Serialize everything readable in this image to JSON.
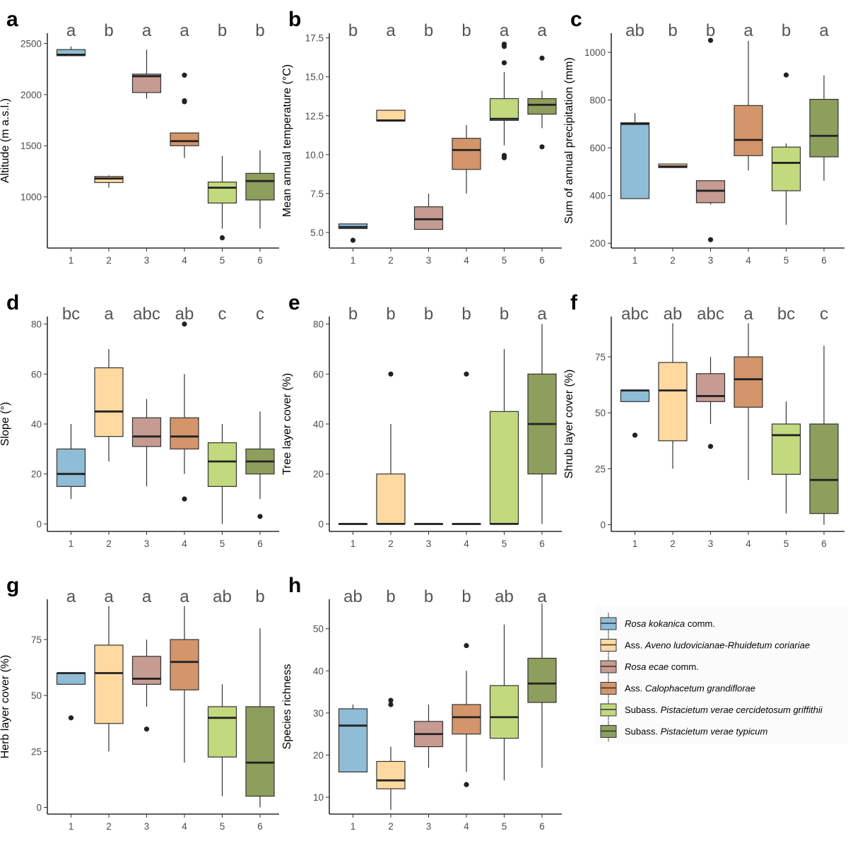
{
  "groups": [
    "1",
    "2",
    "3",
    "4",
    "5",
    "6"
  ],
  "colors": [
    "#8fbcd6",
    "#ffd9a0",
    "#c69b92",
    "#d4956a",
    "#c2d97e",
    "#8e9e5c"
  ],
  "legend": [
    {
      "italic": "Rosa kokanica",
      "rest": " comm."
    },
    {
      "plain": "Ass. ",
      "italic": "Aveno ludovicianae-Rhuidetum coriariae"
    },
    {
      "italic": "Rosa ecae",
      "rest": " comm."
    },
    {
      "plain": "Ass. ",
      "italic": "Calophacetum grandiflorae"
    },
    {
      "plain": "Subass. ",
      "italic": "Pistacietum verae cercidetosum griffithii"
    },
    {
      "plain": "Subass. ",
      "italic": "Pistacietum verae typicum"
    }
  ],
  "chart_data": [
    {
      "type": "box",
      "letter": "a",
      "ylabel": "Altitude (m a.s.l.)",
      "ylim": [
        500,
        2600
      ],
      "yticks": [
        1000,
        1500,
        2000,
        2500
      ],
      "sig": [
        "a",
        "b",
        "a",
        "a",
        "b",
        "b"
      ],
      "boxes": [
        {
          "q1": 2380,
          "med": 2390,
          "q3": 2440,
          "lo": 2375,
          "hi": 2470,
          "out": []
        },
        {
          "q1": 1140,
          "med": 1180,
          "q3": 1200,
          "lo": 1090,
          "hi": 1210,
          "out": []
        },
        {
          "q1": 2020,
          "med": 2180,
          "q3": 2200,
          "lo": 1960,
          "hi": 2440,
          "out": []
        },
        {
          "q1": 1500,
          "med": 1545,
          "q3": 1625,
          "lo": 1380,
          "hi": 1625,
          "out": [
            1930,
            1940,
            2190
          ]
        },
        {
          "q1": 940,
          "med": 1090,
          "q3": 1145,
          "lo": 690,
          "hi": 1400,
          "out": [
            600
          ]
        },
        {
          "q1": 970,
          "med": 1155,
          "q3": 1230,
          "lo": 690,
          "hi": 1455,
          "out": []
        }
      ]
    },
    {
      "type": "box",
      "letter": "b",
      "ylabel": "Mean annual temperature (°C)",
      "ylim": [
        4,
        17.8
      ],
      "yticks": [
        5.0,
        7.5,
        10.0,
        12.5,
        15.0,
        17.5
      ],
      "ytickfmt": 1,
      "sig": [
        "b",
        "a",
        "b",
        "b",
        "a",
        "a"
      ],
      "boxes": [
        {
          "q1": 5.25,
          "med": 5.35,
          "q3": 5.55,
          "lo": 5.25,
          "hi": 5.55,
          "out": [
            4.5
          ]
        },
        {
          "q1": 12.15,
          "med": 12.2,
          "q3": 12.85,
          "lo": 12.15,
          "hi": 12.85,
          "out": []
        },
        {
          "q1": 5.2,
          "med": 5.85,
          "q3": 6.65,
          "lo": 5.2,
          "hi": 7.5,
          "out": []
        },
        {
          "q1": 9.05,
          "med": 10.3,
          "q3": 11.05,
          "lo": 7.5,
          "hi": 11.9,
          "out": []
        },
        {
          "q1": 12.2,
          "med": 12.3,
          "q3": 13.6,
          "lo": 10.6,
          "hi": 15.3,
          "out": [
            9.8,
            9.95,
            15.9,
            16.95,
            17.1
          ]
        },
        {
          "q1": 12.6,
          "med": 13.2,
          "q3": 13.6,
          "lo": 11.7,
          "hi": 14.1,
          "out": [
            10.5,
            16.2
          ]
        }
      ]
    },
    {
      "type": "box",
      "letter": "c",
      "ylabel": "Sum of annual precipitation (mm)",
      "ylim": [
        180,
        1080
      ],
      "yticks": [
        200,
        400,
        600,
        800,
        1000
      ],
      "sig": [
        "ab",
        "b",
        "b",
        "a",
        "b",
        "a"
      ],
      "boxes": [
        {
          "q1": 387,
          "med": 700,
          "q3": 705,
          "lo": 387,
          "hi": 745,
          "out": []
        },
        {
          "q1": 517,
          "med": 522,
          "q3": 532,
          "lo": 517,
          "hi": 532,
          "out": []
        },
        {
          "q1": 370,
          "med": 420,
          "q3": 462,
          "lo": 362,
          "hi": 462,
          "out": [
            215,
            1050
          ]
        },
        {
          "q1": 567,
          "med": 633,
          "q3": 777,
          "lo": 505,
          "hi": 1048,
          "out": []
        },
        {
          "q1": 420,
          "med": 537,
          "q3": 603,
          "lo": 277,
          "hi": 618,
          "out": [
            905
          ]
        },
        {
          "q1": 562,
          "med": 650,
          "q3": 803,
          "lo": 462,
          "hi": 903,
          "out": []
        }
      ]
    },
    {
      "type": "box",
      "letter": "d",
      "ylabel": "Slope (°)",
      "ylim": [
        -3,
        83
      ],
      "yticks": [
        0,
        20,
        40,
        60,
        80
      ],
      "sig": [
        "bc",
        "a",
        "abc",
        "ab",
        "c",
        "c"
      ],
      "boxes": [
        {
          "q1": 15,
          "med": 20,
          "q3": 30,
          "lo": 10,
          "hi": 40,
          "out": []
        },
        {
          "q1": 35,
          "med": 45,
          "q3": 62.5,
          "lo": 25,
          "hi": 70,
          "out": []
        },
        {
          "q1": 31,
          "med": 35,
          "q3": 42.5,
          "lo": 15,
          "hi": 50,
          "out": []
        },
        {
          "q1": 30,
          "med": 35,
          "q3": 42.5,
          "lo": 20,
          "hi": 60,
          "out": [
            10,
            80
          ]
        },
        {
          "q1": 15,
          "med": 25,
          "q3": 32.5,
          "lo": 0,
          "hi": 40,
          "out": []
        },
        {
          "q1": 20,
          "med": 25,
          "q3": 30,
          "lo": 10,
          "hi": 45,
          "out": [
            3
          ]
        }
      ]
    },
    {
      "type": "box",
      "letter": "e",
      "ylabel": "Tree layer cover (%)",
      "ylim": [
        -3,
        83
      ],
      "yticks": [
        0,
        20,
        40,
        60,
        80
      ],
      "sig": [
        "b",
        "b",
        "b",
        "b",
        "b",
        "a"
      ],
      "boxes": [
        {
          "q1": 0,
          "med": 0,
          "q3": 0,
          "lo": 0,
          "hi": 0,
          "out": []
        },
        {
          "q1": 0,
          "med": 0,
          "q3": 20,
          "lo": 0,
          "hi": 40,
          "out": [
            60
          ]
        },
        {
          "q1": 0,
          "med": 0,
          "q3": 0,
          "lo": 0,
          "hi": 0,
          "out": []
        },
        {
          "q1": 0,
          "med": 0,
          "q3": 0,
          "lo": 0,
          "hi": 0,
          "out": [
            60
          ]
        },
        {
          "q1": 0,
          "med": 0,
          "q3": 45,
          "lo": 0,
          "hi": 70,
          "out": []
        },
        {
          "q1": 20,
          "med": 40,
          "q3": 60,
          "lo": 0,
          "hi": 80,
          "out": []
        }
      ]
    },
    {
      "type": "box",
      "letter": "f",
      "ylabel": "Shrub layer cover (%)",
      "ylim": [
        -3,
        93
      ],
      "yticks": [
        0,
        25,
        50,
        75
      ],
      "sig": [
        "abc",
        "ab",
        "abc",
        "a",
        "bc",
        "c"
      ],
      "boxes": [
        {
          "q1": 55,
          "med": 60,
          "q3": 60,
          "lo": 55,
          "hi": 60,
          "out": [
            40
          ]
        },
        {
          "q1": 37.5,
          "med": 60,
          "q3": 72.5,
          "lo": 25,
          "hi": 90,
          "out": []
        },
        {
          "q1": 55,
          "med": 57.5,
          "q3": 67.5,
          "lo": 45,
          "hi": 75,
          "out": [
            35
          ]
        },
        {
          "q1": 52.5,
          "med": 65,
          "q3": 75,
          "lo": 20,
          "hi": 90,
          "out": []
        },
        {
          "q1": 22.5,
          "med": 40,
          "q3": 45,
          "lo": 5,
          "hi": 55,
          "out": []
        },
        {
          "q1": 5,
          "med": 20,
          "q3": 45,
          "lo": 0,
          "hi": 80,
          "out": []
        }
      ]
    },
    {
      "type": "box",
      "letter": "g",
      "ylabel": "Herb layer cover (%)",
      "ylim": [
        -3,
        93
      ],
      "yticks": [
        0,
        25,
        50,
        75
      ],
      "sig": [
        "a",
        "a",
        "a",
        "a",
        "ab",
        "b"
      ],
      "boxes": [
        {
          "q1": 55,
          "med": 60,
          "q3": 60,
          "lo": 55,
          "hi": 60,
          "out": [
            40
          ]
        },
        {
          "q1": 37.5,
          "med": 60,
          "q3": 72.5,
          "lo": 25,
          "hi": 90,
          "out": []
        },
        {
          "q1": 55,
          "med": 57.5,
          "q3": 67.5,
          "lo": 45,
          "hi": 75,
          "out": [
            35
          ]
        },
        {
          "q1": 52.5,
          "med": 65,
          "q3": 75,
          "lo": 20,
          "hi": 90,
          "out": []
        },
        {
          "q1": 22.5,
          "med": 40,
          "q3": 45,
          "lo": 5,
          "hi": 55,
          "out": []
        },
        {
          "q1": 5,
          "med": 20,
          "q3": 45,
          "lo": 0,
          "hi": 80,
          "out": []
        }
      ]
    },
    {
      "type": "box",
      "letter": "h",
      "ylabel": "Species richness",
      "ylim": [
        6,
        57
      ],
      "yticks": [
        10,
        20,
        30,
        40,
        50
      ],
      "sig": [
        "ab",
        "b",
        "b",
        "b",
        "ab",
        "a"
      ],
      "boxes": [
        {
          "q1": 16,
          "med": 27,
          "q3": 31,
          "lo": 16,
          "hi": 32,
          "out": []
        },
        {
          "q1": 12,
          "med": 14,
          "q3": 18.5,
          "lo": 7,
          "hi": 22,
          "out": [
            32,
            33
          ]
        },
        {
          "q1": 22,
          "med": 25,
          "q3": 28,
          "lo": 17,
          "hi": 32,
          "out": []
        },
        {
          "q1": 25,
          "med": 29,
          "q3": 32,
          "lo": 16,
          "hi": 40,
          "out": [
            13,
            46
          ]
        },
        {
          "q1": 24,
          "med": 29,
          "q3": 36.5,
          "lo": 14,
          "hi": 51,
          "out": []
        },
        {
          "q1": 32.5,
          "med": 37,
          "q3": 43,
          "lo": 17,
          "hi": 56,
          "out": []
        }
      ]
    }
  ]
}
